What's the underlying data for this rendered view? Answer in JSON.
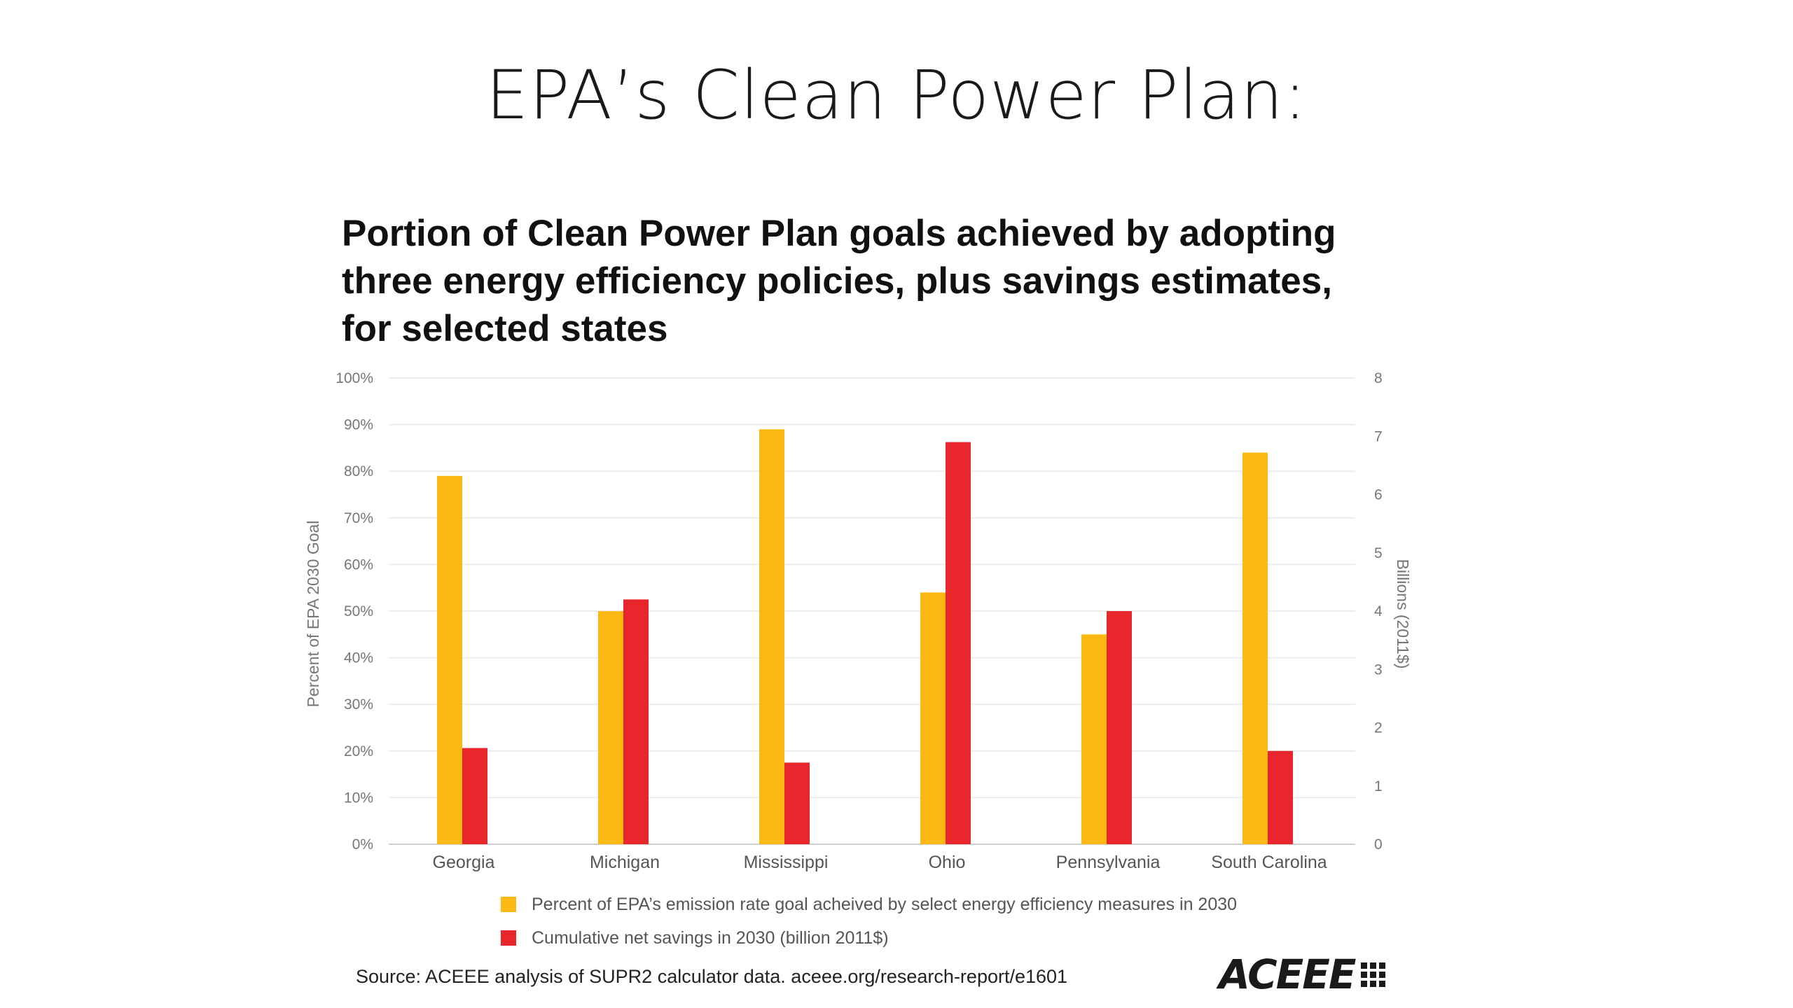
{
  "slide_title": "EPA’s Clean Power Plan:",
  "chart_data": {
    "type": "bar",
    "title_lines": [
      "Portion of Clean Power Plan goals achieved by adopting",
      "three energy efficiency policies, plus savings estimates,",
      "for selected states"
    ],
    "categories": [
      "Georgia",
      "Michigan",
      "Mississippi",
      "Ohio",
      "Pennsylvania",
      "South Carolina"
    ],
    "series": [
      {
        "name": "Percent of EPA’s emission rate goal acheived by select energy efficiency measures in 2030",
        "axis": "left",
        "color": "#FDB913",
        "values": [
          79,
          50,
          89,
          54,
          45,
          84
        ]
      },
      {
        "name": "Cumulative net savings in 2030 (billion 2011$)",
        "axis": "right",
        "color": "#E8262B",
        "values": [
          1.65,
          4.2,
          1.4,
          6.9,
          4.0,
          1.6
        ]
      }
    ],
    "y_left": {
      "label": "Percent of EPA 2030 Goal",
      "range": [
        0,
        100
      ],
      "ticks": [
        "0%",
        "10%",
        "20%",
        "30%",
        "40%",
        "50%",
        "60%",
        "70%",
        "80%",
        "90%",
        "100%"
      ]
    },
    "y_right": {
      "label": "Billions (2011$)",
      "range": [
        0,
        8
      ],
      "ticks": [
        "0",
        "1",
        "2",
        "3",
        "4",
        "5",
        "6",
        "7",
        "8"
      ]
    },
    "grid": true,
    "legend_position": "bottom"
  },
  "source": "Source: ACEEE analysis of SUPR2 calculator data. aceee.org/research-report/e1601",
  "logo_text": "ACEEE"
}
